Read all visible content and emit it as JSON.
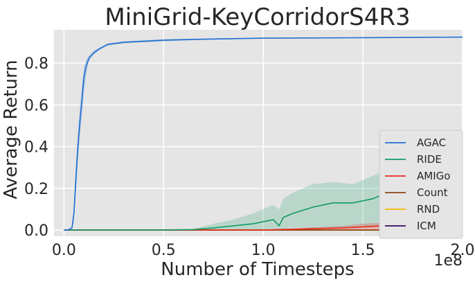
{
  "chart_data": {
    "type": "line",
    "title": "MiniGrid-KeyCorridorS4R3",
    "xlabel": "Number of Timesteps",
    "ylabel": "Average Return",
    "x_multiplier": "1e8",
    "xlim": [
      -0.05,
      2.0
    ],
    "ylim": [
      -0.03,
      0.96
    ],
    "xticks": [
      0.0,
      0.5,
      1.0,
      1.5,
      2.0
    ],
    "xtick_labels": [
      "0.0",
      "0.5",
      "1.0",
      "1.5",
      "2.0"
    ],
    "yticks": [
      0.0,
      0.2,
      0.4,
      0.6,
      0.8
    ],
    "ytick_labels": [
      "0.0",
      "0.2",
      "0.4",
      "0.6",
      "0.8"
    ],
    "grid": true,
    "legend_position": "lower-right",
    "series": [
      {
        "name": "AGAC",
        "color": "#1f6fd1",
        "band_opacity": 0.25,
        "x": [
          0.0,
          0.02,
          0.04,
          0.05,
          0.06,
          0.07,
          0.08,
          0.09,
          0.1,
          0.11,
          0.12,
          0.13,
          0.15,
          0.18,
          0.22,
          0.3,
          0.4,
          0.5,
          0.7,
          1.0,
          1.5,
          2.0
        ],
        "y": [
          0.0,
          0.0,
          0.01,
          0.08,
          0.25,
          0.4,
          0.52,
          0.62,
          0.73,
          0.78,
          0.81,
          0.83,
          0.85,
          0.87,
          0.89,
          0.9,
          0.905,
          0.91,
          0.915,
          0.92,
          0.922,
          0.925
        ],
        "lower": [
          0.0,
          0.0,
          0.005,
          0.04,
          0.18,
          0.33,
          0.45,
          0.55,
          0.66,
          0.74,
          0.79,
          0.82,
          0.84,
          0.865,
          0.885,
          0.895,
          0.9,
          0.905,
          0.912,
          0.918,
          0.92,
          0.923
        ],
        "upper": [
          0.0,
          0.0,
          0.015,
          0.12,
          0.32,
          0.47,
          0.59,
          0.69,
          0.78,
          0.81,
          0.83,
          0.84,
          0.86,
          0.875,
          0.895,
          0.905,
          0.91,
          0.915,
          0.918,
          0.922,
          0.924,
          0.927
        ]
      },
      {
        "name": "RIDE",
        "color": "#0f9b66",
        "band_opacity": 0.2,
        "x": [
          0.0,
          0.5,
          0.65,
          0.75,
          0.85,
          0.95,
          1.05,
          1.08,
          1.1,
          1.15,
          1.25,
          1.35,
          1.45,
          1.55,
          1.6,
          1.65,
          1.7,
          1.75,
          1.8,
          1.85,
          1.9,
          1.95,
          2.0
        ],
        "y": [
          0.0,
          0.0,
          0.002,
          0.01,
          0.02,
          0.03,
          0.05,
          0.02,
          0.06,
          0.08,
          0.11,
          0.13,
          0.13,
          0.15,
          0.17,
          0.18,
          0.16,
          0.175,
          0.19,
          0.18,
          0.2,
          0.18,
          0.17
        ],
        "lower": [
          0.0,
          0.0,
          0.0,
          0.0,
          0.0,
          0.0,
          0.0,
          0.0,
          0.005,
          0.01,
          0.01,
          0.01,
          0.01,
          0.015,
          0.02,
          0.02,
          0.02,
          0.025,
          0.03,
          0.03,
          0.03,
          0.03,
          0.03
        ],
        "upper": [
          0.0,
          0.0,
          0.006,
          0.03,
          0.05,
          0.08,
          0.12,
          0.1,
          0.15,
          0.18,
          0.22,
          0.23,
          0.22,
          0.26,
          0.28,
          0.29,
          0.25,
          0.27,
          0.3,
          0.28,
          0.31,
          0.3,
          0.3
        ]
      },
      {
        "name": "AMIGo",
        "color": "#e8281e",
        "band_opacity": 0.25,
        "x": [
          0.0,
          1.0,
          1.2,
          1.4,
          1.5,
          1.6,
          1.7,
          1.8,
          1.9,
          2.0
        ],
        "y": [
          0.0,
          0.0,
          0.005,
          0.01,
          0.015,
          0.02,
          0.025,
          0.03,
          0.045,
          0.055
        ],
        "lower": [
          0.0,
          0.0,
          0.0,
          0.0,
          0.0,
          0.0,
          0.0,
          0.005,
          0.02,
          0.03
        ],
        "upper": [
          0.0,
          0.0,
          0.01,
          0.02,
          0.03,
          0.035,
          0.04,
          0.05,
          0.07,
          0.085
        ]
      },
      {
        "name": "Count",
        "color": "#8b4513",
        "x": [
          0.0,
          2.0
        ],
        "y": [
          0.0,
          0.0
        ]
      },
      {
        "name": "RND",
        "color": "#f5b800",
        "x": [
          0.0,
          2.0
        ],
        "y": [
          0.0,
          0.0
        ]
      },
      {
        "name": "ICM",
        "color": "#2a0a5c",
        "x": [
          0.0,
          2.0
        ],
        "y": [
          0.0,
          0.0
        ]
      }
    ]
  }
}
